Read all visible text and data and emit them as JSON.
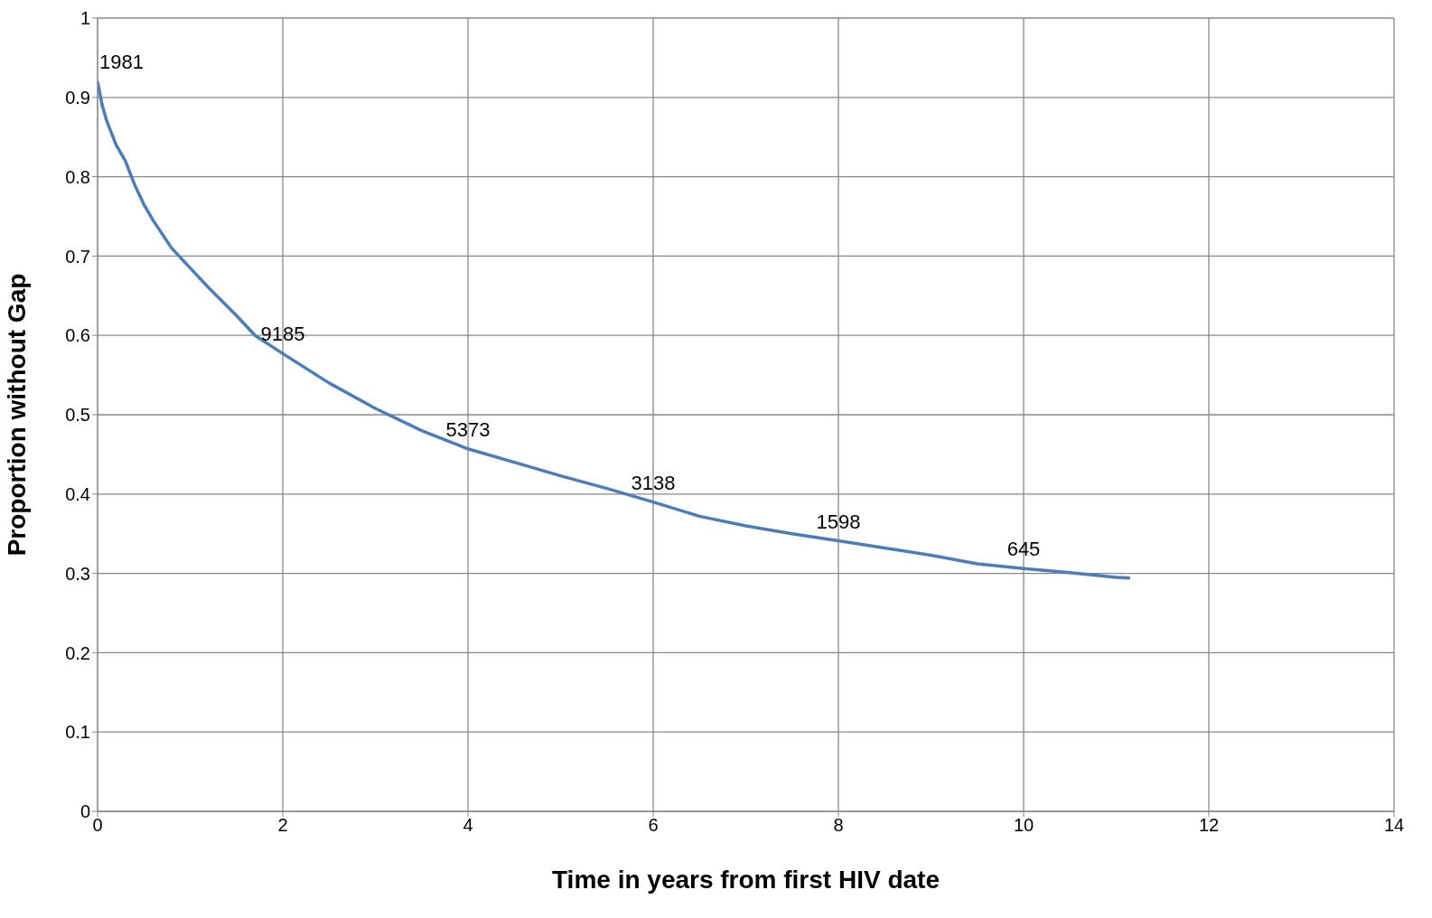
{
  "chart_data": {
    "type": "line",
    "xlabel": "Time in years from first HIV date",
    "ylabel": "Proportion without Gap",
    "x": [
      0,
      0.05,
      0.1,
      0.2,
      0.3,
      0.4,
      0.5,
      0.6,
      0.8,
      1,
      1.2,
      1.5,
      1.7,
      2,
      2.5,
      3,
      3.5,
      4,
      4.5,
      5,
      5.5,
      6,
      6.5,
      7,
      7.5,
      8,
      8.5,
      9,
      9.5,
      10,
      10.5,
      11,
      11.15
    ],
    "series": [
      {
        "color": "#4a7ebb",
        "values": [
          0.92,
          0.89,
          0.87,
          0.84,
          0.82,
          0.79,
          0.765,
          0.745,
          0.71,
          0.685,
          0.66,
          0.625,
          0.6,
          0.577,
          0.54,
          0.508,
          0.48,
          0.457,
          0.44,
          0.423,
          0.407,
          0.39,
          0.372,
          0.36,
          0.35,
          0.341,
          0.332,
          0.323,
          0.312,
          0.306,
          0.301,
          0.295,
          0.294
        ]
      }
    ],
    "xlim": [
      0,
      14
    ],
    "xticks": [
      0,
      2,
      4,
      6,
      8,
      10,
      12,
      14
    ],
    "ylim": [
      0,
      1
    ],
    "yticks": [
      0,
      0.1,
      0.2,
      0.3,
      0.4,
      0.5,
      0.6,
      0.7,
      0.8,
      0.9,
      1
    ],
    "grid": true,
    "legend": false,
    "marker": "none",
    "line_style": "solid",
    "annotations": [
      {
        "text": "1981",
        "x": 0,
        "y": 0.92
      },
      {
        "text": "9185",
        "x": 2,
        "y": 0.577
      },
      {
        "text": "5373",
        "x": 4,
        "y": 0.457
      },
      {
        "text": "3138",
        "x": 6,
        "y": 0.39
      },
      {
        "text": "1598",
        "x": 8,
        "y": 0.341
      },
      {
        "text": "645",
        "x": 10,
        "y": 0.306
      }
    ]
  }
}
